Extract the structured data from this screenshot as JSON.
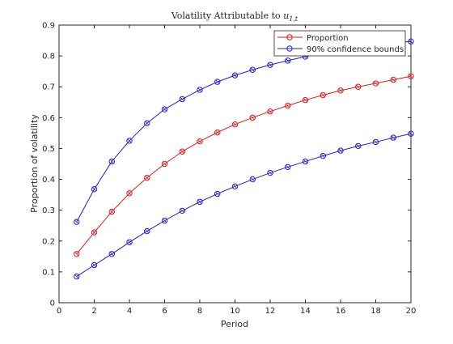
{
  "chart_data": {
    "type": "line",
    "title": "Volatility Attributable to ",
    "title_math_base": "u",
    "title_math_sub": "1,t",
    "xlabel": "Period",
    "ylabel": "Proportion of volatility",
    "xlim": [
      0,
      20
    ],
    "ylim": [
      0,
      0.9
    ],
    "xticks": [
      0,
      2,
      4,
      6,
      8,
      10,
      12,
      14,
      16,
      18,
      20
    ],
    "yticks": [
      0,
      0.1,
      0.2,
      0.3,
      0.4,
      0.5,
      0.6,
      0.7,
      0.8,
      0.9
    ],
    "xtick_labels": [
      "0",
      "2",
      "4",
      "6",
      "8",
      "10",
      "12",
      "14",
      "16",
      "18",
      "20"
    ],
    "ytick_labels": [
      "0",
      "0.1",
      "0.2",
      "0.3",
      "0.4",
      "0.5",
      "0.6",
      "0.7",
      "0.8",
      "0.9"
    ],
    "grid": false,
    "legend_position": "top-right",
    "x": [
      1,
      2,
      3,
      4,
      5,
      6,
      7,
      8,
      9,
      10,
      11,
      12,
      13,
      14,
      15,
      16,
      17,
      18,
      19,
      20
    ],
    "series": [
      {
        "name": "Proportion",
        "color": "#e31a1c",
        "marker": "circle",
        "values": [
          0.158,
          0.228,
          0.295,
          0.355,
          0.405,
          0.45,
          0.49,
          0.523,
          0.552,
          0.578,
          0.6,
          0.62,
          0.639,
          0.657,
          0.673,
          0.688,
          0.7,
          0.711,
          0.723,
          0.734
        ]
      },
      {
        "name": "90% confidence bounds",
        "color": "#1f1fd6",
        "marker": "circle",
        "values": [
          0.262,
          0.368,
          0.458,
          0.525,
          0.582,
          0.627,
          0.66,
          0.69,
          0.716,
          0.737,
          0.755,
          0.771,
          0.785,
          0.798,
          0.81,
          0.82,
          0.829,
          0.836,
          0.842,
          0.847
        ]
      },
      {
        "name": "",
        "color": "#1f1fd6",
        "marker": "circle",
        "values": [
          0.085,
          0.122,
          0.158,
          0.196,
          0.232,
          0.266,
          0.298,
          0.327,
          0.353,
          0.377,
          0.4,
          0.421,
          0.44,
          0.458,
          0.476,
          0.493,
          0.508,
          0.521,
          0.535,
          0.548
        ]
      }
    ],
    "legend": [
      "Proportion",
      "90% confidence bounds"
    ]
  }
}
